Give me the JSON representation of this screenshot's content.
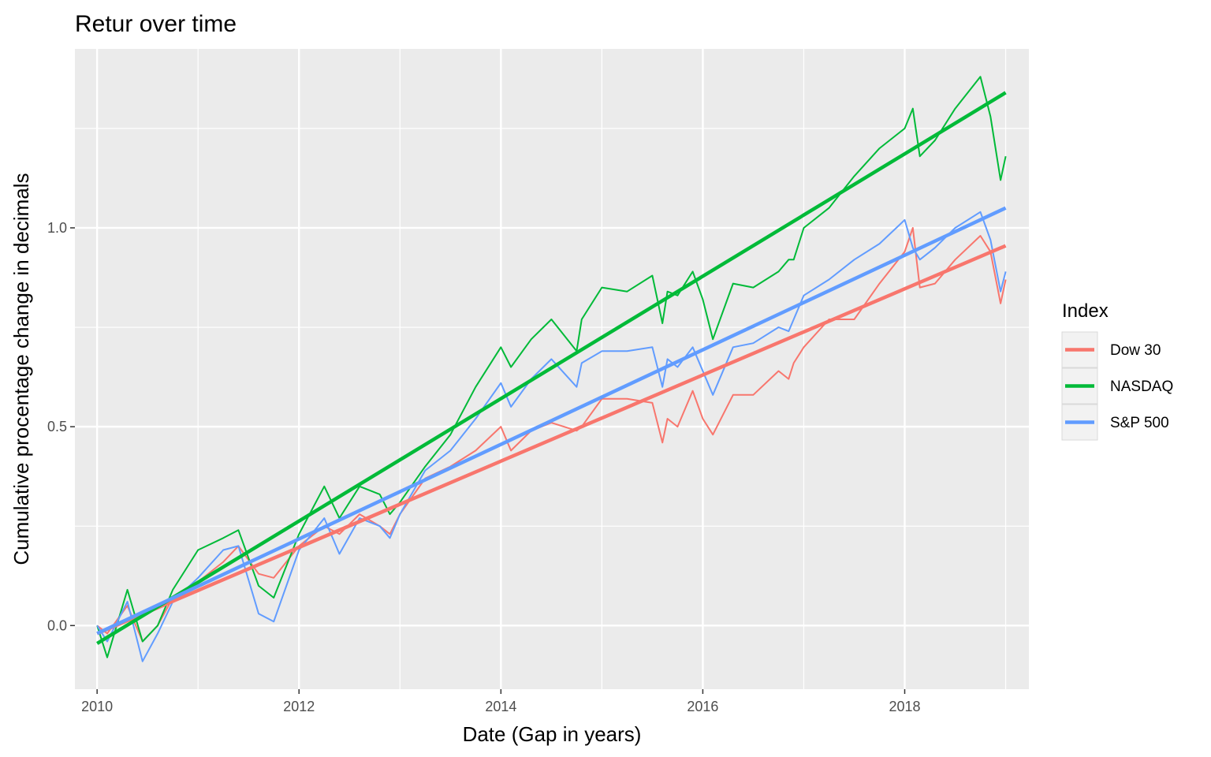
{
  "chart_data": {
    "type": "line",
    "title": "Retur over time",
    "xlabel": "Date (Gap in years)",
    "ylabel": "Cumulative procentage change in decimals",
    "xlim": [
      2009.78,
      2019.23
    ],
    "ylim": [
      -0.16,
      1.45
    ],
    "x_ticks": [
      2010,
      2012,
      2014,
      2016,
      2018
    ],
    "x_tick_labels": [
      "2010",
      "2012",
      "2014",
      "2016",
      "2018"
    ],
    "y_ticks": [
      0.0,
      0.5,
      1.0
    ],
    "y_tick_labels": [
      "0.0",
      "0.5",
      "1.0"
    ],
    "grid": true,
    "legend": {
      "title": "Index",
      "position": "right"
    },
    "series": [
      {
        "name": "Dow 30",
        "color": "#F8766D",
        "x": [
          2010.0,
          2010.1,
          2010.3,
          2010.45,
          2010.6,
          2010.75,
          2011.0,
          2011.25,
          2011.4,
          2011.6,
          2011.75,
          2012.0,
          2012.25,
          2012.4,
          2012.6,
          2012.8,
          2012.9,
          2013.0,
          2013.25,
          2013.5,
          2013.75,
          2014.0,
          2014.1,
          2014.3,
          2014.5,
          2014.75,
          2014.8,
          2015.0,
          2015.25,
          2015.5,
          2015.6,
          2015.65,
          2015.75,
          2015.9,
          2016.0,
          2016.1,
          2016.3,
          2016.5,
          2016.75,
          2016.85,
          2016.9,
          2017.0,
          2017.25,
          2017.5,
          2017.75,
          2018.0,
          2018.08,
          2018.15,
          2018.3,
          2018.5,
          2018.75,
          2018.85,
          2018.95,
          2019.0
        ],
        "y": [
          0.0,
          -0.02,
          0.05,
          -0.04,
          0.0,
          0.07,
          0.11,
          0.16,
          0.2,
          0.13,
          0.12,
          0.2,
          0.25,
          0.23,
          0.28,
          0.25,
          0.23,
          0.28,
          0.37,
          0.4,
          0.44,
          0.5,
          0.44,
          0.49,
          0.51,
          0.49,
          0.5,
          0.57,
          0.57,
          0.56,
          0.46,
          0.52,
          0.5,
          0.59,
          0.52,
          0.48,
          0.58,
          0.58,
          0.64,
          0.62,
          0.66,
          0.7,
          0.77,
          0.77,
          0.86,
          0.94,
          1.0,
          0.85,
          0.86,
          0.92,
          0.98,
          0.94,
          0.81,
          0.87
        ]
      },
      {
        "name": "NASDAQ",
        "color": "#00BA38",
        "x": [
          2010.0,
          2010.1,
          2010.3,
          2010.45,
          2010.6,
          2010.75,
          2011.0,
          2011.25,
          2011.4,
          2011.6,
          2011.75,
          2012.0,
          2012.25,
          2012.4,
          2012.6,
          2012.8,
          2012.9,
          2013.0,
          2013.25,
          2013.5,
          2013.75,
          2014.0,
          2014.1,
          2014.3,
          2014.5,
          2014.75,
          2014.8,
          2015.0,
          2015.25,
          2015.5,
          2015.6,
          2015.65,
          2015.75,
          2015.9,
          2016.0,
          2016.1,
          2016.3,
          2016.5,
          2016.75,
          2016.85,
          2016.9,
          2017.0,
          2017.25,
          2017.5,
          2017.75,
          2018.0,
          2018.08,
          2018.15,
          2018.3,
          2018.5,
          2018.75,
          2018.85,
          2018.95,
          2019.0
        ],
        "y": [
          0.0,
          -0.08,
          0.09,
          -0.04,
          0.0,
          0.09,
          0.19,
          0.22,
          0.24,
          0.1,
          0.07,
          0.23,
          0.35,
          0.27,
          0.35,
          0.33,
          0.28,
          0.31,
          0.4,
          0.48,
          0.6,
          0.7,
          0.65,
          0.72,
          0.77,
          0.69,
          0.77,
          0.85,
          0.84,
          0.88,
          0.76,
          0.84,
          0.83,
          0.89,
          0.82,
          0.72,
          0.86,
          0.85,
          0.89,
          0.92,
          0.92,
          1.0,
          1.05,
          1.13,
          1.2,
          1.25,
          1.3,
          1.18,
          1.22,
          1.3,
          1.38,
          1.28,
          1.12,
          1.18
        ]
      },
      {
        "name": "S&P 500",
        "color": "#619CFF",
        "x": [
          2010.0,
          2010.1,
          2010.3,
          2010.45,
          2010.6,
          2010.75,
          2011.0,
          2011.25,
          2011.4,
          2011.6,
          2011.75,
          2012.0,
          2012.25,
          2012.4,
          2012.6,
          2012.8,
          2012.9,
          2013.0,
          2013.25,
          2013.5,
          2013.75,
          2014.0,
          2014.1,
          2014.3,
          2014.5,
          2014.75,
          2014.8,
          2015.0,
          2015.25,
          2015.5,
          2015.6,
          2015.65,
          2015.75,
          2015.9,
          2016.0,
          2016.1,
          2016.3,
          2016.5,
          2016.75,
          2016.85,
          2016.9,
          2017.0,
          2017.25,
          2017.5,
          2017.75,
          2018.0,
          2018.08,
          2018.15,
          2018.3,
          2018.5,
          2018.75,
          2018.85,
          2018.95,
          2019.0
        ],
        "y": [
          0.0,
          -0.04,
          0.06,
          -0.09,
          -0.02,
          0.06,
          0.12,
          0.19,
          0.2,
          0.03,
          0.01,
          0.19,
          0.27,
          0.18,
          0.27,
          0.25,
          0.22,
          0.28,
          0.39,
          0.44,
          0.52,
          0.61,
          0.55,
          0.62,
          0.67,
          0.6,
          0.66,
          0.69,
          0.69,
          0.7,
          0.6,
          0.67,
          0.65,
          0.7,
          0.64,
          0.58,
          0.7,
          0.71,
          0.75,
          0.74,
          0.77,
          0.83,
          0.87,
          0.92,
          0.96,
          1.02,
          0.95,
          0.92,
          0.95,
          1.0,
          1.04,
          0.97,
          0.84,
          0.89
        ]
      }
    ],
    "trend_lines": [
      {
        "name": "Dow 30",
        "color": "#F8766D",
        "x": [
          2010.0,
          2019.0
        ],
        "y": [
          -0.02,
          0.955
        ]
      },
      {
        "name": "NASDAQ",
        "color": "#00BA38",
        "x": [
          2010.0,
          2019.0
        ],
        "y": [
          -0.045,
          1.34
        ]
      },
      {
        "name": "S&P 500",
        "color": "#619CFF",
        "x": [
          2010.0,
          2019.0
        ],
        "y": [
          -0.02,
          1.05
        ]
      }
    ]
  }
}
